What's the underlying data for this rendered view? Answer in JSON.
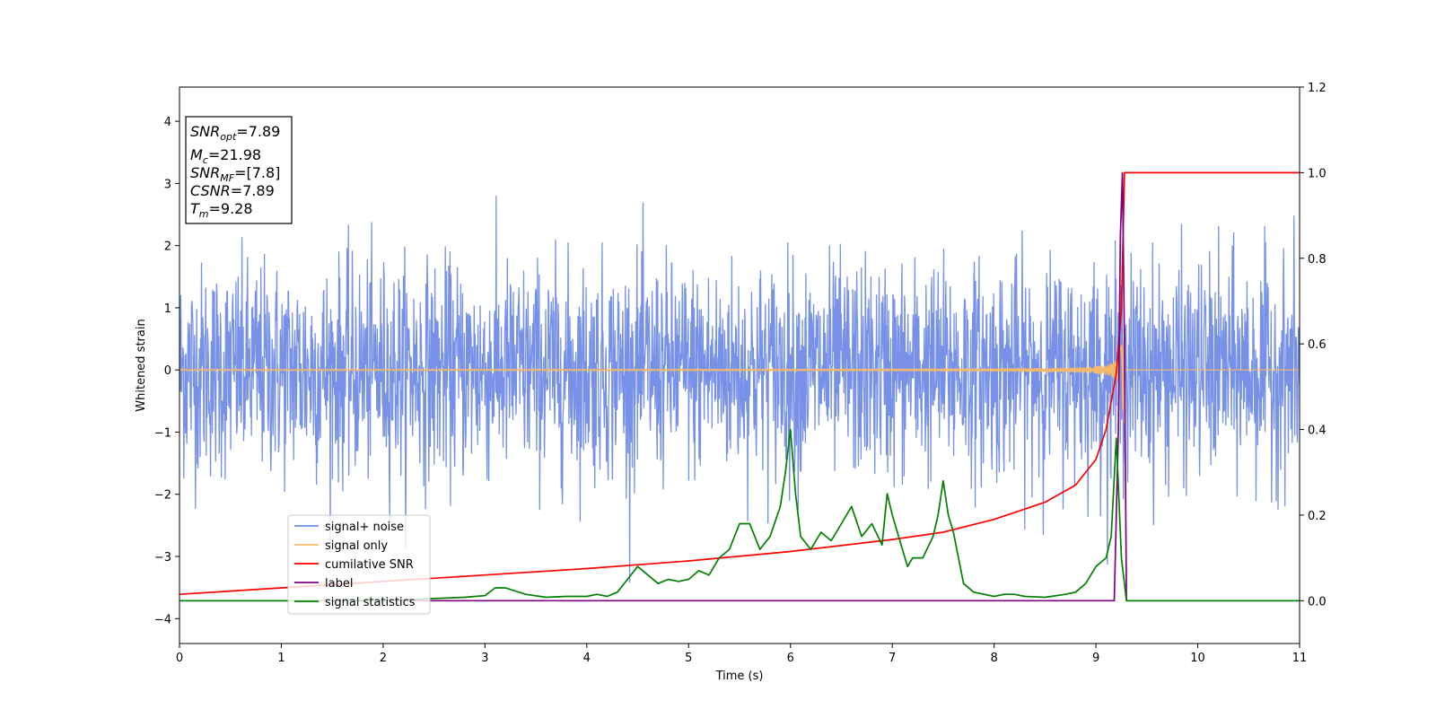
{
  "chart_data": {
    "type": "line",
    "xlabel": "Time (s)",
    "ylabel": "Whitened strain",
    "xlim": [
      0,
      11
    ],
    "ylim": [
      -4.4,
      4.55
    ],
    "y2lim": [
      -0.1,
      1.2
    ],
    "x_ticks": [
      "0",
      "1",
      "2",
      "3",
      "4",
      "5",
      "6",
      "7",
      "8",
      "9",
      "10",
      "11"
    ],
    "y_ticks": [
      "4",
      "3",
      "2",
      "1",
      "0",
      "−1",
      "−2",
      "−3",
      "−4"
    ],
    "y2_ticks": [
      "1.2",
      "1.0",
      "0.8",
      "0.6",
      "0.4",
      "0.2",
      "0.0"
    ],
    "grid": false,
    "legend_position": "lower-left",
    "info_box": {
      "snr_opt": {
        "sym": "SNR",
        "sub": "opt",
        "val": "=7.89"
      },
      "mc": {
        "sym": "M",
        "sub": "c",
        "val": "=21.98"
      },
      "snr_mf": {
        "sym": "SNR",
        "sub": "MF",
        "val": "=[7.8]"
      },
      "csnr": {
        "sym": "CSNR",
        "sub": "",
        "val": "=7.89"
      },
      "tm": {
        "sym": "T",
        "sub": "m",
        "val": "=9.28"
      }
    },
    "series": [
      {
        "name": "signal+ noise",
        "axis": "left",
        "color": "#6f8be6",
        "kind": "noise",
        "std": 0.85
      },
      {
        "name": "signal only",
        "axis": "left",
        "color": "#f5b96a",
        "kind": "chirp",
        "merger": 9.28,
        "peak_amplitude": 1.2
      },
      {
        "name": "cumilative SNR",
        "axis": "right",
        "color": "#ff0000",
        "x": [
          0,
          1,
          2,
          3,
          4,
          5,
          6,
          7,
          7.5,
          8,
          8.5,
          8.8,
          9.0,
          9.1,
          9.2,
          9.25,
          9.28,
          11
        ],
        "y": [
          0.015,
          0.03,
          0.045,
          0.06,
          0.075,
          0.093,
          0.115,
          0.143,
          0.16,
          0.19,
          0.23,
          0.27,
          0.33,
          0.4,
          0.53,
          0.68,
          1.0,
          1.0
        ]
      },
      {
        "name": "label",
        "axis": "right",
        "color": "#800080",
        "x": [
          0,
          9.18,
          9.22,
          9.24,
          9.26,
          9.28,
          9.3,
          11
        ],
        "y": [
          0.0,
          0.0,
          0.4,
          0.85,
          1.0,
          0.6,
          0.0,
          0.0
        ]
      },
      {
        "name": "signal statistics",
        "axis": "right",
        "color": "#008000",
        "x": [
          0,
          0.5,
          1,
          1.5,
          2,
          2.5,
          2.8,
          3.0,
          3.1,
          3.2,
          3.4,
          3.6,
          3.8,
          4.0,
          4.1,
          4.2,
          4.3,
          4.4,
          4.5,
          4.6,
          4.7,
          4.8,
          4.9,
          5.0,
          5.1,
          5.2,
          5.3,
          5.4,
          5.5,
          5.6,
          5.7,
          5.8,
          5.9,
          5.95,
          6.0,
          6.05,
          6.1,
          6.2,
          6.3,
          6.4,
          6.5,
          6.6,
          6.7,
          6.8,
          6.9,
          6.95,
          7.0,
          7.1,
          7.15,
          7.2,
          7.3,
          7.4,
          7.45,
          7.5,
          7.55,
          7.6,
          7.7,
          7.8,
          8.0,
          8.1,
          8.2,
          8.3,
          8.5,
          8.7,
          8.8,
          8.9,
          9.0,
          9.1,
          9.15,
          9.2,
          9.25,
          9.3,
          11
        ],
        "y": [
          0.0,
          0.0,
          0.0,
          0.0,
          0.0,
          0.005,
          0.008,
          0.012,
          0.03,
          0.03,
          0.015,
          0.008,
          0.01,
          0.01,
          0.015,
          0.01,
          0.02,
          0.05,
          0.08,
          0.06,
          0.04,
          0.05,
          0.045,
          0.05,
          0.07,
          0.06,
          0.1,
          0.12,
          0.18,
          0.18,
          0.12,
          0.15,
          0.22,
          0.3,
          0.4,
          0.25,
          0.15,
          0.12,
          0.16,
          0.14,
          0.18,
          0.22,
          0.15,
          0.18,
          0.13,
          0.25,
          0.2,
          0.12,
          0.08,
          0.1,
          0.1,
          0.15,
          0.2,
          0.28,
          0.2,
          0.16,
          0.04,
          0.02,
          0.01,
          0.015,
          0.015,
          0.01,
          0.008,
          0.015,
          0.02,
          0.04,
          0.08,
          0.1,
          0.15,
          0.38,
          0.1,
          0.0,
          0.0
        ]
      }
    ]
  }
}
